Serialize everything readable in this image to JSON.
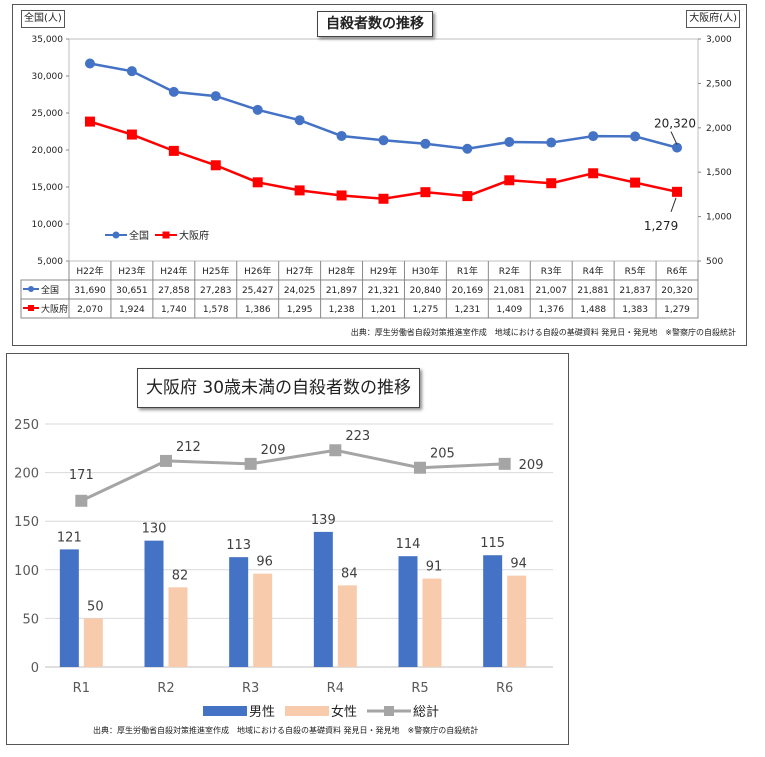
{
  "chart_data": [
    {
      "type": "line",
      "title": "自殺者数の推移",
      "left_unit": "全国(人)",
      "right_unit": "大阪府(人)",
      "categories": [
        "H22年",
        "H23年",
        "H24年",
        "H25年",
        "H26年",
        "H27年",
        "H28年",
        "H29年",
        "H30年",
        "R1年",
        "R2年",
        "R3年",
        "R4年",
        "R5年",
        "R6年"
      ],
      "ylim_left": [
        5000,
        35000
      ],
      "ylim_right": [
        500,
        3000
      ],
      "yticks_left": [
        "5,000",
        "10,000",
        "15,000",
        "20,000",
        "25,000",
        "30,000",
        "35,000"
      ],
      "yticks_right": [
        "500",
        "1,000",
        "1,500",
        "2,000",
        "2,500",
        "3,000"
      ],
      "series": [
        {
          "name": "全国",
          "axis": "left",
          "color": "#4472c4",
          "marker": "circle",
          "values": [
            31690,
            30651,
            27858,
            27283,
            25427,
            24025,
            21897,
            21321,
            20840,
            20169,
            21081,
            21007,
            21881,
            21837,
            20320
          ],
          "labels": [
            "31,690",
            "30,651",
            "27,858",
            "27,283",
            "25,427",
            "24,025",
            "21,897",
            "21,321",
            "20,840",
            "20,169",
            "21,081",
            "21,007",
            "21,881",
            "21,837",
            "20,320"
          ]
        },
        {
          "name": "大阪府",
          "axis": "right",
          "color": "#ff0000",
          "marker": "square",
          "values": [
            2070,
            1924,
            1740,
            1578,
            1386,
            1295,
            1238,
            1201,
            1275,
            1231,
            1409,
            1376,
            1488,
            1383,
            1279
          ],
          "labels": [
            "2,070",
            "1,924",
            "1,740",
            "1,578",
            "1,386",
            "1,295",
            "1,238",
            "1,201",
            "1,275",
            "1,231",
            "1,409",
            "1,376",
            "1,488",
            "1,383",
            "1,279"
          ]
        }
      ],
      "annotations": [
        "20,320",
        "1,279"
      ],
      "source": "出典：厚生労働省自殺対策推進室作成　地域における自殺の基礎資料 発見日・発見地　※警察庁の自殺統計"
    },
    {
      "type": "bar",
      "title": "大阪府 30歳未満の自殺者数の推移",
      "categories": [
        "R1",
        "R2",
        "R3",
        "R4",
        "R5",
        "R6"
      ],
      "ylim": [
        0,
        250
      ],
      "yticks": [
        "0",
        "50",
        "100",
        "150",
        "200",
        "250"
      ],
      "grid": true,
      "series": [
        {
          "name": "男性",
          "color": "#4472c4",
          "values": [
            121,
            130,
            113,
            139,
            114,
            115
          ]
        },
        {
          "name": "女性",
          "color": "#f8cbad",
          "values": [
            50,
            82,
            96,
            84,
            91,
            94
          ]
        },
        {
          "name": "総計",
          "type": "line",
          "color": "#a5a5a5",
          "values": [
            171,
            212,
            209,
            223,
            205,
            209
          ]
        }
      ],
      "source": "出典：厚生労働省自殺対策推進室作成　地域における自殺の基礎資料 発見日・発見地　※警察庁の自殺統計"
    }
  ]
}
